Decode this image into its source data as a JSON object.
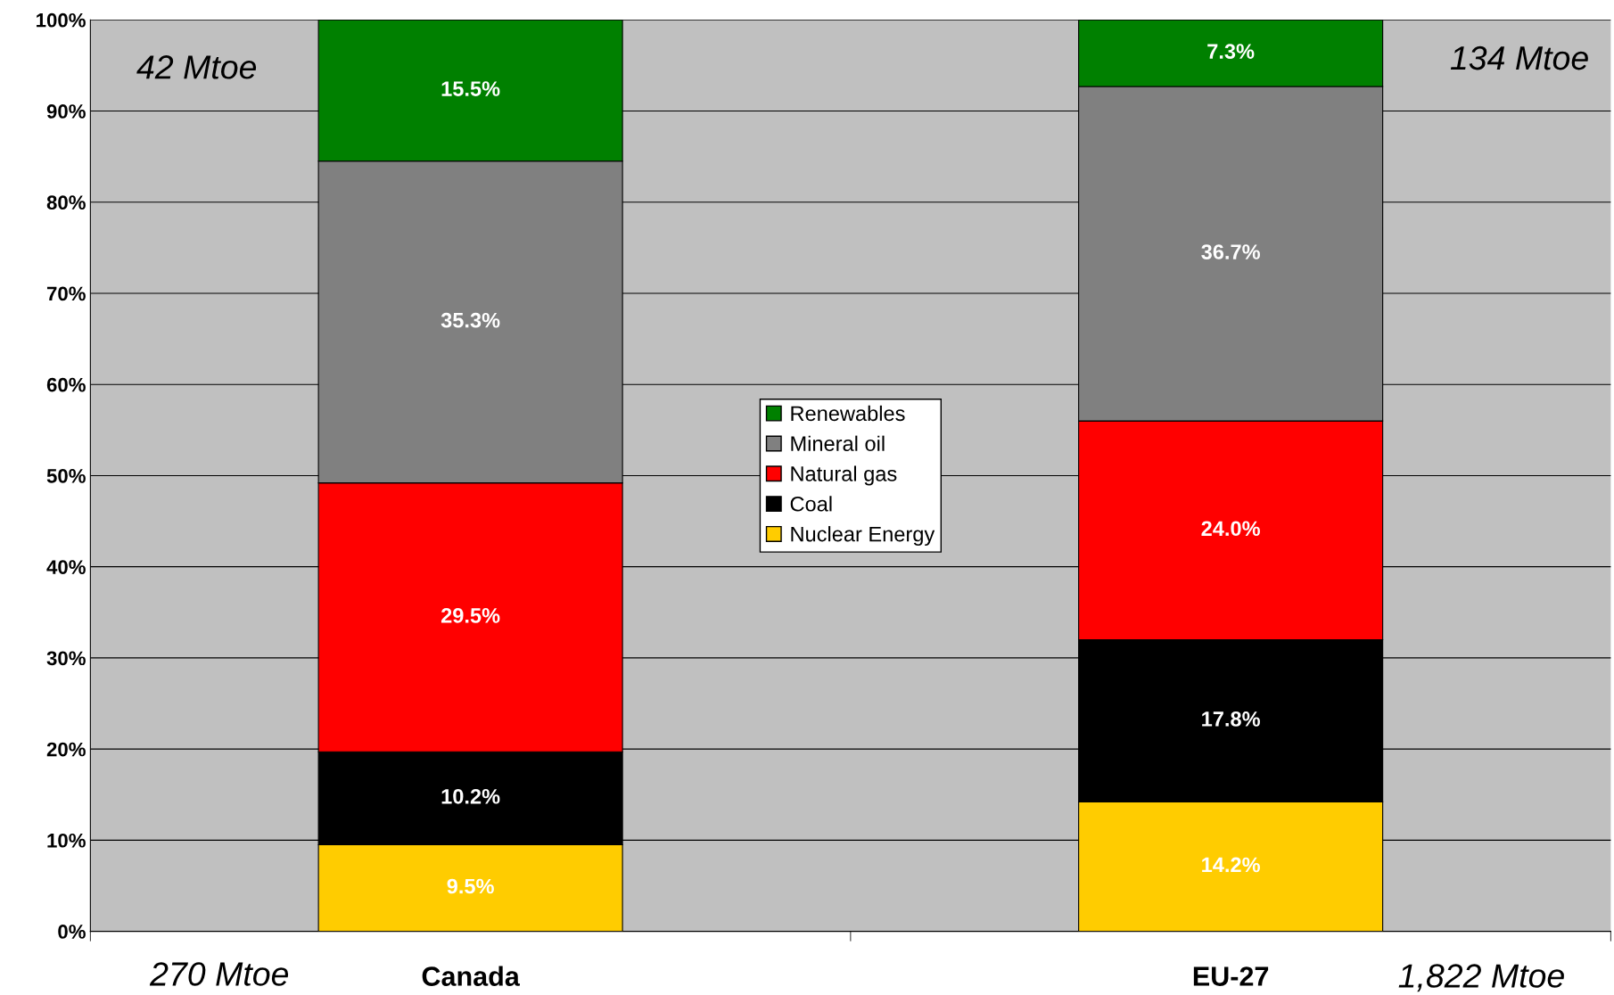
{
  "chart_data": {
    "type": "bar",
    "stacked": true,
    "categories": [
      "Canada",
      "EU-27"
    ],
    "series": [
      {
        "name": "Nuclear Energy",
        "color": "#ffcc00",
        "values": [
          9.5,
          14.2
        ],
        "value_labels": [
          "9.5%",
          "14.2%"
        ]
      },
      {
        "name": "Coal",
        "color": "#000000",
        "values": [
          10.2,
          17.8
        ],
        "value_labels": [
          "10.2%",
          "17.8%"
        ]
      },
      {
        "name": "Natural gas",
        "color": "#ff0000",
        "values": [
          29.5,
          24.0
        ],
        "value_labels": [
          "29.5%",
          "24.0%"
        ]
      },
      {
        "name": "Mineral oil",
        "color": "#808080",
        "values": [
          35.3,
          36.7
        ],
        "value_labels": [
          "35.3%",
          "36.7%"
        ]
      },
      {
        "name": "Renewables",
        "color": "#008000",
        "values": [
          15.5,
          7.3
        ],
        "value_labels": [
          "15.5%",
          "7.3%"
        ]
      }
    ],
    "ylim": [
      0,
      100
    ],
    "yticks": [
      {
        "value": 0,
        "label": "0%"
      },
      {
        "value": 10,
        "label": "10%"
      },
      {
        "value": 20,
        "label": "20%"
      },
      {
        "value": 30,
        "label": "30%"
      },
      {
        "value": 40,
        "label": "40%"
      },
      {
        "value": 50,
        "label": "50%"
      },
      {
        "value": 60,
        "label": "60%"
      },
      {
        "value": 70,
        "label": "70%"
      },
      {
        "value": 80,
        "label": "80%"
      },
      {
        "value": 90,
        "label": "90%"
      },
      {
        "value": 100,
        "label": "100%"
      }
    ],
    "grid": "y",
    "legend": "center",
    "annotations": [
      "42 Mtoe",
      "134 Mtoe",
      "270 Mtoe",
      "1,822 Mtoe"
    ]
  }
}
